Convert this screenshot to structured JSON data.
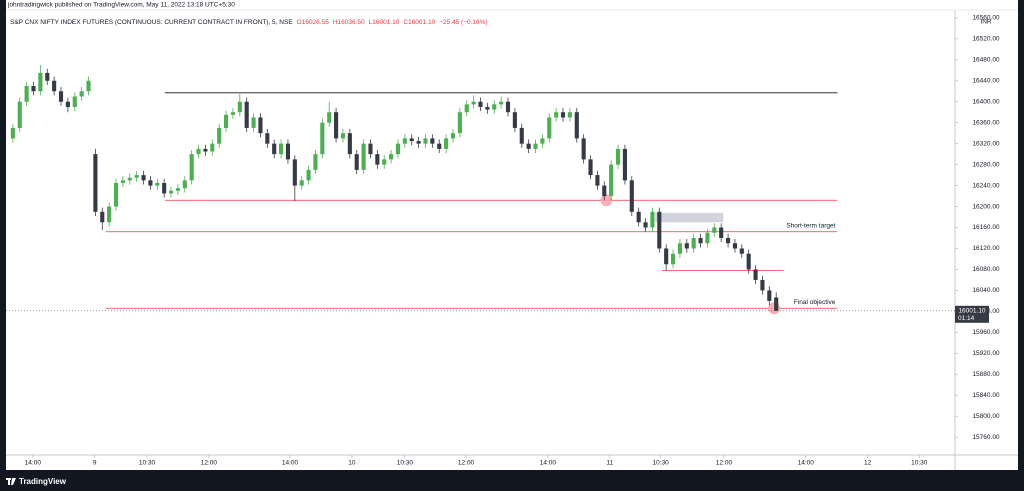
{
  "header": "johntradingwick published on TradingView.com, May 11, 2022 13:18 UTC+5:30",
  "footer": "TradingView",
  "chart_data": {
    "type": "candlestick",
    "title": "S&P CNX NIFTY INDEX FUTURES (CONTINUOUS: CURRENT CONTRACT IN FRONT), 5, NSE",
    "ohlc_labels": [
      "O16026.55",
      "H16036.50",
      "L16001.10",
      "C16001.10"
    ],
    "change": "−25.45 (−0.16%)",
    "currency": "INR",
    "last_price": {
      "value": 16001.1,
      "label": "16001.10"
    },
    "countdown": "01:14",
    "up_color": "#4caf50",
    "down_color": "#363a45",
    "xlim": [
      -1,
      137
    ],
    "xticks": [
      {
        "value": 2.9,
        "label": "14:00"
      },
      {
        "value": 11.9,
        "label": "9"
      },
      {
        "value": 19.5,
        "label": "10:30"
      },
      {
        "value": 28.5,
        "label": "12:00"
      },
      {
        "value": 40.3,
        "label": "14:00"
      },
      {
        "value": 49.3,
        "label": "10"
      },
      {
        "value": 57.0,
        "label": "10:30"
      },
      {
        "value": 65.9,
        "label": "12:00"
      },
      {
        "value": 77.8,
        "label": "14:00"
      },
      {
        "value": 86.8,
        "label": "11"
      },
      {
        "value": 94.2,
        "label": "10:30"
      },
      {
        "value": 103.4,
        "label": "12:00"
      },
      {
        "value": 115.3,
        "label": "14:00"
      },
      {
        "value": 124.3,
        "label": "12"
      },
      {
        "value": 131.8,
        "label": "10:30"
      }
    ],
    "ylim": [
      15726,
      16575
    ],
    "yticks": [
      {
        "value": 15760,
        "label": "15760.00"
      },
      {
        "value": 15800,
        "label": "15800.00"
      },
      {
        "value": 15840,
        "label": "15840.00"
      },
      {
        "value": 15880,
        "label": "15880.00"
      },
      {
        "value": 15920,
        "label": "15920.00"
      },
      {
        "value": 15960,
        "label": "15960.00"
      },
      {
        "value": 16000,
        "label": "16000.00"
      },
      {
        "value": 16040,
        "label": "16040.00"
      },
      {
        "value": 16080,
        "label": "16080.00"
      },
      {
        "value": 16120,
        "label": "16120.00"
      },
      {
        "value": 16160,
        "label": "16160.00"
      },
      {
        "value": 16200,
        "label": "16200.00"
      },
      {
        "value": 16240,
        "label": "16240.00"
      },
      {
        "value": 16280,
        "label": "16280.00"
      },
      {
        "value": 16320,
        "label": "16320.00"
      },
      {
        "value": 16360,
        "label": "16360.00"
      },
      {
        "value": 16400,
        "label": "16400.00"
      },
      {
        "value": 16440,
        "label": "16440.00"
      },
      {
        "value": 16480,
        "label": "16480.00"
      },
      {
        "value": 16520,
        "label": "16520.00"
      },
      {
        "value": 16560,
        "label": "16560.00"
      }
    ],
    "grid": false,
    "ohlc": [
      [
        16330,
        16358,
        16322,
        16350
      ],
      [
        16350,
        16408,
        16342,
        16400
      ],
      [
        16400,
        16438,
        16392,
        16430
      ],
      [
        16430,
        16438,
        16412,
        16420
      ],
      [
        16420,
        16470,
        16412,
        16455
      ],
      [
        16455,
        16463,
        16432,
        16440
      ],
      [
        16440,
        16448,
        16412,
        16420
      ],
      [
        16420,
        16428,
        16392,
        16400
      ],
      [
        16400,
        16408,
        16380,
        16390
      ],
      [
        16390,
        16418,
        16382,
        16410
      ],
      [
        16410,
        16428,
        16402,
        16420
      ],
      [
        16420,
        16448,
        16412,
        16440
      ],
      [
        16300,
        16310,
        16182,
        16190
      ],
      [
        16190,
        16198,
        16155,
        16170
      ],
      [
        16170,
        16208,
        16162,
        16200
      ],
      [
        16200,
        16253,
        16192,
        16245
      ],
      [
        16245,
        16258,
        16237,
        16250
      ],
      [
        16250,
        16263,
        16242,
        16255
      ],
      [
        16255,
        16268,
        16247,
        16260
      ],
      [
        16260,
        16268,
        16242,
        16250
      ],
      [
        16250,
        16258,
        16232,
        16240
      ],
      [
        16240,
        16253,
        16232,
        16245
      ],
      [
        16245,
        16253,
        16217,
        16225
      ],
      [
        16225,
        16238,
        16217,
        16230
      ],
      [
        16230,
        16243,
        16222,
        16235
      ],
      [
        16235,
        16258,
        16227,
        16250
      ],
      [
        16250,
        16308,
        16242,
        16300
      ],
      [
        16300,
        16318,
        16292,
        16310
      ],
      [
        16310,
        16318,
        16297,
        16305
      ],
      [
        16305,
        16328,
        16297,
        16320
      ],
      [
        16320,
        16358,
        16312,
        16350
      ],
      [
        16350,
        16383,
        16342,
        16375
      ],
      [
        16375,
        16388,
        16367,
        16380
      ],
      [
        16380,
        16415,
        16372,
        16400
      ],
      [
        16400,
        16408,
        16342,
        16350
      ],
      [
        16350,
        16378,
        16342,
        16370
      ],
      [
        16370,
        16378,
        16332,
        16340
      ],
      [
        16340,
        16348,
        16312,
        16320
      ],
      [
        16320,
        16328,
        16292,
        16300
      ],
      [
        16300,
        16328,
        16292,
        16320
      ],
      [
        16320,
        16328,
        16282,
        16290
      ],
      [
        16290,
        16298,
        16210,
        16240
      ],
      [
        16240,
        16258,
        16232,
        16250
      ],
      [
        16250,
        16278,
        16242,
        16270
      ],
      [
        16270,
        16308,
        16262,
        16300
      ],
      [
        16300,
        16368,
        16292,
        16360
      ],
      [
        16360,
        16400,
        16352,
        16380
      ],
      [
        16380,
        16388,
        16322,
        16330
      ],
      [
        16330,
        16348,
        16322,
        16340
      ],
      [
        16340,
        16348,
        16292,
        16300
      ],
      [
        16300,
        16308,
        16262,
        16270
      ],
      [
        16270,
        16328,
        16262,
        16320
      ],
      [
        16320,
        16328,
        16292,
        16300
      ],
      [
        16300,
        16308,
        16272,
        16280
      ],
      [
        16280,
        16298,
        16272,
        16290
      ],
      [
        16290,
        16308,
        16282,
        16300
      ],
      [
        16300,
        16328,
        16292,
        16320
      ],
      [
        16320,
        16338,
        16312,
        16330
      ],
      [
        16330,
        16338,
        16317,
        16325
      ],
      [
        16325,
        16333,
        16312,
        16320
      ],
      [
        16320,
        16338,
        16312,
        16330
      ],
      [
        16330,
        16338,
        16312,
        16320
      ],
      [
        16320,
        16328,
        16302,
        16310
      ],
      [
        16310,
        16338,
        16302,
        16330
      ],
      [
        16330,
        16348,
        16322,
        16340
      ],
      [
        16340,
        16388,
        16332,
        16380
      ],
      [
        16380,
        16403,
        16372,
        16395
      ],
      [
        16395,
        16412,
        16387,
        16400
      ],
      [
        16400,
        16408,
        16382,
        16390
      ],
      [
        16390,
        16398,
        16377,
        16385
      ],
      [
        16385,
        16403,
        16377,
        16395
      ],
      [
        16395,
        16410,
        16387,
        16400
      ],
      [
        16400,
        16408,
        16372,
        16380
      ],
      [
        16380,
        16388,
        16342,
        16350
      ],
      [
        16350,
        16358,
        16312,
        16320
      ],
      [
        16320,
        16328,
        16302,
        16310
      ],
      [
        16310,
        16328,
        16302,
        16320
      ],
      [
        16320,
        16338,
        16312,
        16330
      ],
      [
        16330,
        16378,
        16322,
        16370
      ],
      [
        16370,
        16388,
        16362,
        16380
      ],
      [
        16380,
        16388,
        16362,
        16370
      ],
      [
        16370,
        16388,
        16362,
        16380
      ],
      [
        16380,
        16388,
        16322,
        16330
      ],
      [
        16330,
        16338,
        16282,
        16290
      ],
      [
        16290,
        16298,
        16252,
        16260
      ],
      [
        16260,
        16268,
        16232,
        16240
      ],
      [
        16240,
        16248,
        16212,
        16220
      ],
      [
        16220,
        16288,
        16212,
        16280
      ],
      [
        16280,
        16318,
        16272,
        16310
      ],
      [
        16310,
        16318,
        16242,
        16250
      ],
      [
        16250,
        16258,
        16182,
        16190
      ],
      [
        16190,
        16198,
        16162,
        16170
      ],
      [
        16170,
        16178,
        16152,
        16160
      ],
      [
        16160,
        16198,
        16152,
        16190
      ],
      [
        16190,
        16198,
        16112,
        16120
      ],
      [
        16120,
        16128,
        16078,
        16090
      ],
      [
        16090,
        16118,
        16082,
        16110
      ],
      [
        16110,
        16138,
        16102,
        16130
      ],
      [
        16130,
        16138,
        16112,
        16120
      ],
      [
        16120,
        16148,
        16112,
        16140
      ],
      [
        16140,
        16148,
        16122,
        16130
      ],
      [
        16130,
        16158,
        16122,
        16150
      ],
      [
        16150,
        16168,
        16142,
        16160
      ],
      [
        16160,
        16168,
        16132,
        16140
      ],
      [
        16140,
        16148,
        16122,
        16130
      ],
      [
        16130,
        16138,
        16112,
        16120
      ],
      [
        16120,
        16128,
        16102,
        16110
      ],
      [
        16110,
        16118,
        16072,
        16080
      ],
      [
        16080,
        16088,
        16052,
        16060
      ],
      [
        16060,
        16068,
        16032,
        16040
      ],
      [
        16040,
        16048,
        16012,
        16020
      ],
      [
        16026.55,
        16036.5,
        16001.1,
        16001.1
      ]
    ],
    "lines": [
      {
        "price": 16417,
        "from": 22.1,
        "to": 119.9,
        "color": "#131722"
      },
      {
        "price": 16212,
        "from": 22.1,
        "to": 119.9,
        "color": "#f23645"
      },
      {
        "price": 16152,
        "from": 13.5,
        "to": 119.9,
        "color": "#f23645",
        "label": "Short-term target"
      },
      {
        "price": 16006,
        "from": 13.5,
        "to": 119.9,
        "color": "#f23645",
        "label": "Final objective"
      },
      {
        "price": 16078,
        "from": 94.4,
        "to": 112.1,
        "color": "#f23645"
      }
    ],
    "zone": {
      "from": 93.4,
      "to": 103.3,
      "top": 16188,
      "bottom": 16170,
      "color": "#d1d4dc"
    },
    "markers": [
      {
        "at": 86.3,
        "price": 16212,
        "color": "#f7a1aa"
      },
      {
        "at": 110.7,
        "price": 16006,
        "color": "#f7a1aa"
      }
    ]
  }
}
